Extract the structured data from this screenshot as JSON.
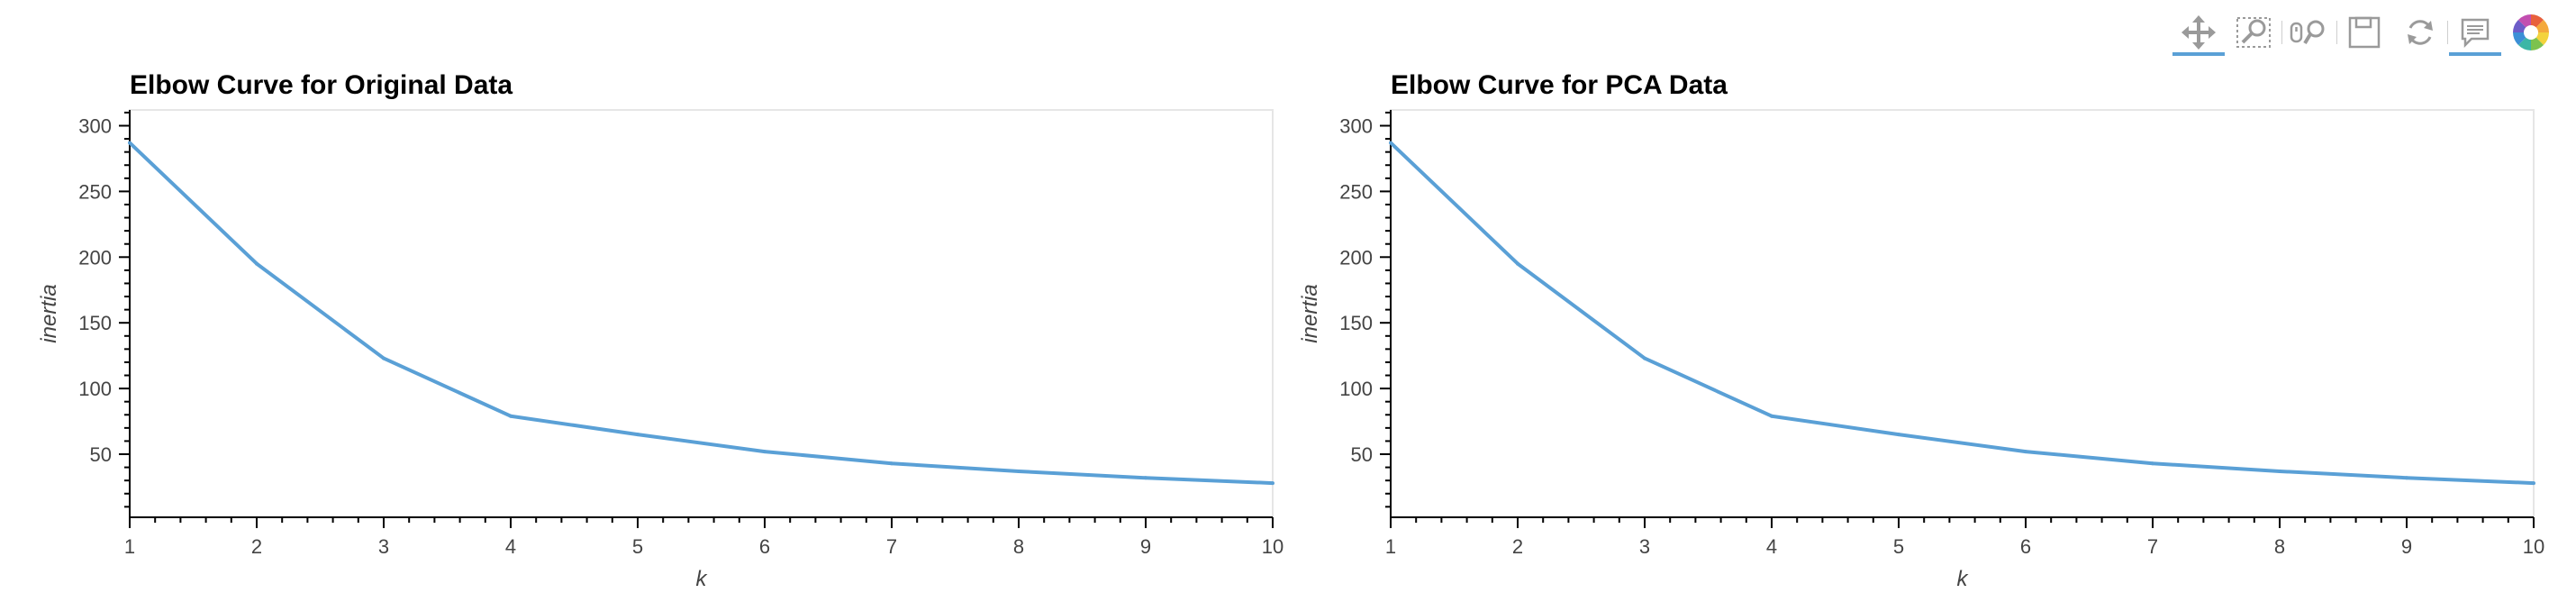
{
  "toolbar": {
    "tools": [
      {
        "name": "pan-tool",
        "icon": "move-arrows-icon",
        "active": true
      },
      {
        "name": "box-zoom-tool",
        "icon": "box-zoom-icon",
        "active": false
      },
      {
        "name": "wheel-zoom-tool",
        "icon": "wheel-zoom-icon",
        "active": false
      },
      {
        "name": "save-tool",
        "icon": "save-icon",
        "active": false
      },
      {
        "name": "reset-tool",
        "icon": "reset-icon",
        "active": false
      },
      {
        "name": "hover-tool",
        "icon": "hover-comment-icon",
        "active": true
      },
      {
        "name": "bokeh-logo",
        "icon": "bokeh-logo-icon",
        "active": false
      }
    ]
  },
  "chart_data": [
    {
      "type": "line",
      "title": "Elbow Curve for Original Data",
      "xlabel": "k",
      "ylabel": "inertia",
      "x": [
        1,
        2,
        3,
        4,
        5,
        6,
        7,
        8,
        9,
        10
      ],
      "series": [
        {
          "values": [
            287,
            195,
            123,
            79,
            65,
            52,
            43,
            37,
            32,
            28
          ]
        }
      ],
      "xlim": [
        1,
        10
      ],
      "ylim": [
        2,
        312
      ],
      "yticks": [
        50,
        100,
        150,
        200,
        250,
        300
      ],
      "xticks": [
        1,
        2,
        3,
        4,
        5,
        6,
        7,
        8,
        9,
        10
      ],
      "color": "#5aa0d6",
      "grid": false
    },
    {
      "type": "line",
      "title": "Elbow Curve for PCA Data",
      "xlabel": "k",
      "ylabel": "inertia",
      "x": [
        1,
        2,
        3,
        4,
        5,
        6,
        7,
        8,
        9,
        10
      ],
      "series": [
        {
          "values": [
            287,
            195,
            123,
            79,
            65,
            52,
            43,
            37,
            32,
            28
          ]
        }
      ],
      "xlim": [
        1,
        10
      ],
      "ylim": [
        2,
        312
      ],
      "yticks": [
        50,
        100,
        150,
        200,
        250,
        300
      ],
      "xticks": [
        1,
        2,
        3,
        4,
        5,
        6,
        7,
        8,
        9,
        10
      ],
      "color": "#5aa0d6",
      "grid": false
    }
  ]
}
